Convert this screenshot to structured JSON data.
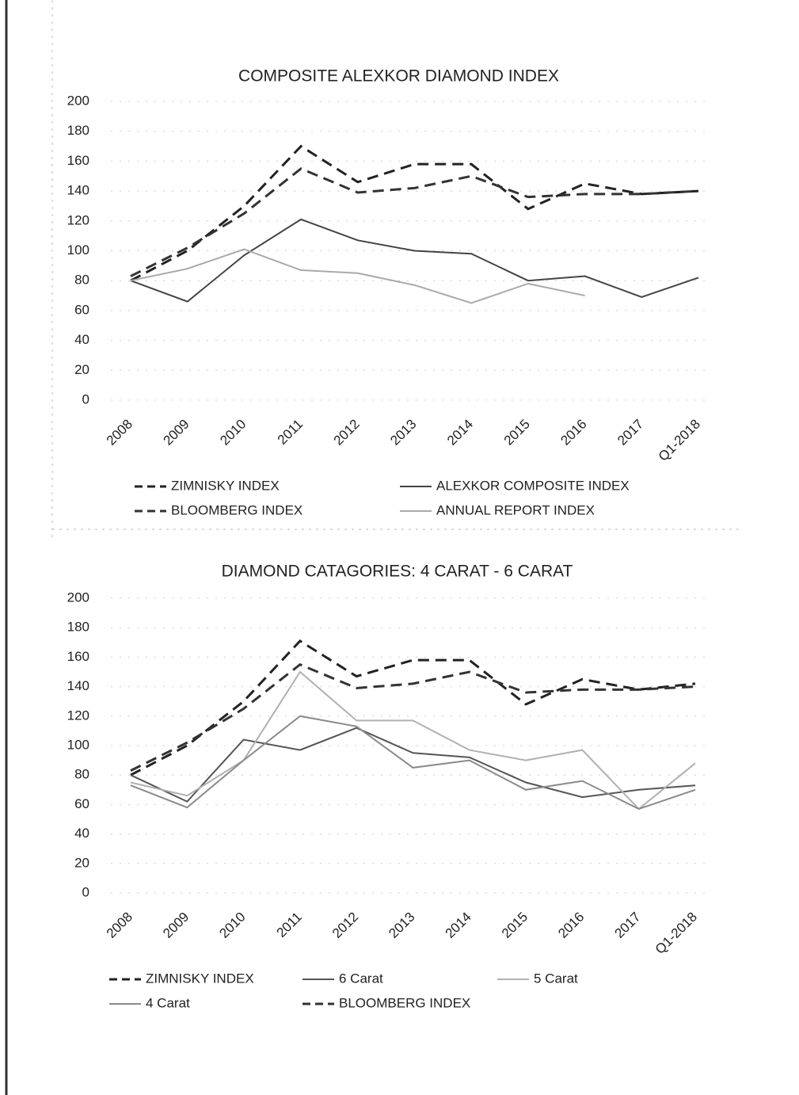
{
  "chart_data": [
    {
      "type": "line",
      "title": "COMPOSITE ALEXKOR DIAMOND INDEX",
      "categories": [
        "2008",
        "2009",
        "2010",
        "2011",
        "2012",
        "2013",
        "2014",
        "2015",
        "2016",
        "2017",
        "Q1-2018"
      ],
      "ylim": [
        0,
        200
      ],
      "yticks": [
        0,
        20,
        40,
        60,
        80,
        100,
        120,
        140,
        160,
        180,
        200
      ],
      "grid": true,
      "series": [
        {
          "name": "ZIMNISKY INDEX",
          "color": "#222222",
          "style": "dashed",
          "values": [
            80,
            100,
            130,
            170,
            146,
            158,
            158,
            128,
            145,
            138,
            140
          ]
        },
        {
          "name": "ALEXKOR COMPOSITE INDEX",
          "color": "#444444",
          "style": "solid",
          "values": [
            80,
            66,
            97,
            121,
            107,
            100,
            98,
            80,
            83,
            69,
            82
          ]
        },
        {
          "name": "BLOOMBERG INDEX",
          "color": "#333333",
          "style": "dashed",
          "values": [
            83,
            102,
            125,
            155,
            139,
            142,
            150,
            136,
            138,
            138,
            140
          ]
        },
        {
          "name": "ANNUAL REPORT INDEX",
          "color": "#aaaaaa",
          "style": "solid",
          "values": [
            80,
            88,
            101,
            87,
            85,
            77,
            65,
            78,
            70,
            null,
            null
          ]
        }
      ]
    },
    {
      "type": "line",
      "title": "DIAMOND CATAGORIES: 4 CARAT - 6 CARAT",
      "categories": [
        "2008",
        "2009",
        "2010",
        "2011",
        "2012",
        "2013",
        "2014",
        "2015",
        "2016",
        "2017",
        "Q1-2018"
      ],
      "ylim": [
        0,
        200
      ],
      "yticks": [
        0,
        20,
        40,
        60,
        80,
        100,
        120,
        140,
        160,
        180,
        200
      ],
      "grid": true,
      "series": [
        {
          "name": "ZIMNISKY INDEX",
          "color": "#222222",
          "style": "dashed",
          "values": [
            80,
            100,
            130,
            171,
            147,
            158,
            158,
            128,
            145,
            138,
            142
          ]
        },
        {
          "name": "6 Carat",
          "color": "#555555",
          "style": "solid",
          "values": [
            80,
            62,
            104,
            97,
            112,
            95,
            92,
            75,
            65,
            70,
            73
          ]
        },
        {
          "name": "5 Carat",
          "color": "#b0b0b0",
          "style": "solid",
          "values": [
            75,
            66,
            90,
            150,
            117,
            117,
            97,
            90,
            97,
            57,
            88
          ]
        },
        {
          "name": "4 Carat",
          "color": "#8a8a8a",
          "style": "solid",
          "values": [
            73,
            58,
            90,
            120,
            113,
            85,
            90,
            70,
            76,
            57,
            70
          ]
        },
        {
          "name": "BLOOMBERG INDEX",
          "color": "#333333",
          "style": "dashed",
          "values": [
            83,
            102,
            125,
            155,
            139,
            142,
            150,
            136,
            138,
            138,
            140
          ]
        }
      ]
    }
  ]
}
